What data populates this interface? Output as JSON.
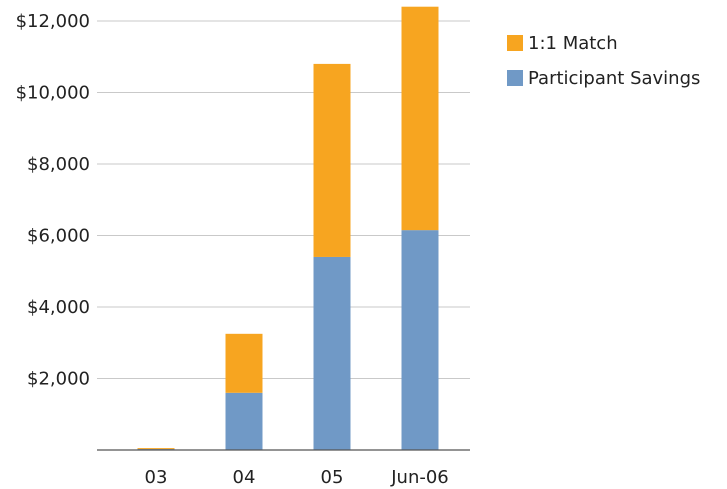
{
  "chart_data": {
    "type": "bar",
    "stacked": true,
    "categories": [
      "03",
      "04",
      "05",
      "Jun-06"
    ],
    "series": [
      {
        "name": "Participant Savings",
        "color": "#7099C6",
        "values": [
          25,
          1600,
          5400,
          6150
        ]
      },
      {
        "name": "1:1 Match",
        "color": "#F7A520",
        "values": [
          25,
          1650,
          5400,
          6250
        ]
      }
    ],
    "y_ticks": [
      {
        "value": 2000,
        "label": "$2,000"
      },
      {
        "value": 4000,
        "label": "$4,000"
      },
      {
        "value": 6000,
        "label": "$6,000"
      },
      {
        "value": 8000,
        "label": "$8,000"
      },
      {
        "value": 10000,
        "label": "$10,000"
      },
      {
        "value": 12000,
        "label": "$12,000"
      }
    ],
    "ylim": [
      0,
      12000
    ],
    "grid": true,
    "legend_position": "top-right",
    "legend_order": [
      "1:1 Match",
      "Participant Savings"
    ]
  }
}
